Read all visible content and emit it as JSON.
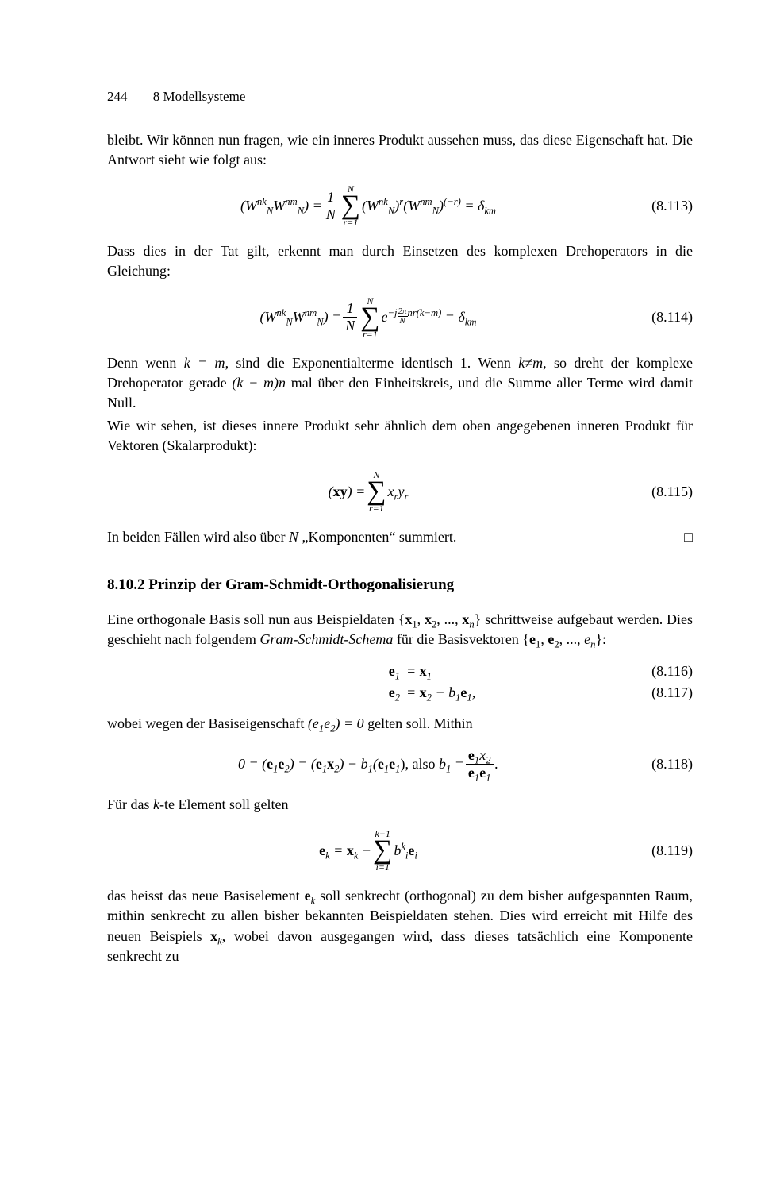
{
  "header": {
    "page_number": "244",
    "chapter": "8  Modellsysteme"
  },
  "p1": "bleibt. Wir können nun fragen, wie ein inneres Produkt aussehen muss, das diese Eigenschaft hat. Die Antwort sieht wie folgt aus:",
  "eq113": {
    "lhs_open": "(",
    "W1": "W",
    "W1sup": "nk",
    "W1sub": "N",
    "W2": "W",
    "W2sup": "nm",
    "W2sub": "N",
    "lhs_close": ") = ",
    "frac_num": "1",
    "frac_den": "N",
    "sum_top": "N",
    "sum_bot": "r=1",
    "mid_open": "(",
    "W3": "W",
    "W3sup": "nk",
    "W3sub": "N",
    "mid_close": ")",
    "pow1": "r",
    "mid2_open": "(",
    "W4": "W",
    "W4sup": "nm",
    "W4sub": "N",
    "mid2_close": ")",
    "pow2": "(−r)",
    "tail": " = δ",
    "tailsub": "km",
    "num": "(8.113)"
  },
  "p2": "Dass dies in der Tat gilt, erkennt man durch Einsetzen des komplexen Drehoperators in die Gleichung:",
  "eq114": {
    "lhs_open": "(",
    "W1": "W",
    "W1sup": "nk",
    "W1sub": "N",
    "W2": "W",
    "W2sup": "nm",
    "W2sub": "N",
    "lhs_close": ") = ",
    "frac_num": "1",
    "frac_den": "N",
    "sum_top": "N",
    "sum_bot": "r=1",
    "e": " e",
    "exp_pre": "−j",
    "exp_num": "2π",
    "exp_den": "N",
    "exp_post": "nr(k−m)",
    "tail": " = δ",
    "tailsub": "km",
    "num": "(8.114)"
  },
  "p3a": "Denn wenn ",
  "p3b": "k = m",
  "p3c": ", sind die Exponentialterme identisch 1. Wenn ",
  "p3d": "k≠m",
  "p3e": ", so dreht der komplexe Drehoperator gerade ",
  "p3f": "(k − m)n",
  "p3g": " mal über den Einheitskreis, und die Summe aller Terme wird damit Null.",
  "p4": "Wie wir sehen, ist dieses innere Produkt sehr ähnlich dem oben angegebenen inneren Produkt für Vektoren (Skalarprodukt):",
  "eq115": {
    "lhs": "(xy) = ",
    "sum_top": "N",
    "sum_bot": "r=1",
    "term_x": " x",
    "term_xsub": "r",
    "term_y": "y",
    "term_ysub": "r",
    "num": "(8.115)"
  },
  "p5a": "In beiden Fällen wird also über ",
  "p5b": "N",
  "p5c": " „Komponenten“  summiert.",
  "tomb": "□",
  "sec": "8.10.2 Prinzip der Gram-Schmidt-Orthogonalisierung",
  "p6a": "Eine orthogonale Basis soll nun aus Beispieldaten ",
  "p6set": "{x₁, x₂, ..., xₙ}",
  "p6b": " schrittweise aufgebaut werden. Dies geschieht nach folgendem ",
  "p6i": "Gram-Schmidt-Schema",
  "p6c": " für die Basisvektoren ",
  "p6set2": "{e₁, e₂, ..., eₙ}",
  "p6d": ":",
  "eq116": {
    "lhs_e": "e",
    "lhs_sub": "1",
    "eq": " = ",
    "rhs_x": "x",
    "rhs_sub": "1",
    "num": "(8.116)"
  },
  "eq117": {
    "lhs_e": "e",
    "lhs_sub": "2",
    "eq": " = ",
    "rhs_x": "x",
    "rhs_xsub": "2",
    "minus": " − ",
    "b": "b",
    "bsub": "1",
    "e": "e",
    "esub": "1",
    "tail": ",",
    "num": "(8.117)"
  },
  "p7a": "wobei wegen der Basiseigenschaft ",
  "p7eq": "(e₁e₂) = 0",
  "p7b": " gelten soll. Mithin",
  "eq118": {
    "lhs": "0 = (",
    "e1a": "e",
    "e1asub": "1",
    "e1b": "e",
    "e1bsub": "2",
    "mid1": ") = (",
    "e2a": "e",
    "e2asub": "1",
    "x2": "x",
    "x2sub": "2",
    "mid2": ") − ",
    "b": "b",
    "bsub": "1",
    "mid3": "(",
    "e3a": "e",
    "e3asub": "1",
    "e3b": "e",
    "e3bsub": "1",
    "mid4": "),    also    ",
    "b2": "b",
    "b2sub": "1",
    "eq": " = ",
    "fnum_e": "e",
    "fnum_esub": "1",
    "fnum_x": "x",
    "fnum_xsub": "2",
    "fden_e1": "e",
    "fden_e1sub": "1",
    "fden_e2": "e",
    "fden_e2sub": "1",
    "tail": ".",
    "num": "(8.118)"
  },
  "p8a": "Für das ",
  "p8b": "k",
  "p8c": "-te Element soll gelten",
  "eq119": {
    "lhs_e": "e",
    "lhs_sub": "k",
    "eq": " = ",
    "x": "x",
    "xsub": "k",
    "minus": " − ",
    "sum_top": "k−1",
    "sum_bot": "i=1",
    "b": " b",
    "bsup": "k",
    "bsub": "i",
    "e": "e",
    "esub": "i",
    "num": "(8.119)"
  },
  "p9a": "das heisst das neue Basiselement ",
  "p9e": "e",
  "p9esub": "k",
  "p9b": " soll senkrecht (orthogonal) zu dem bisher aufgespannten Raum, mithin senkrecht zu allen bisher bekannten Beispieldaten stehen. Dies wird erreicht mit Hilfe des neuen Beispiels ",
  "p9x": "x",
  "p9xsub": "k",
  "p9c": ", wobei davon ausgegangen wird, dass dieses tatsächlich eine Komponente senkrecht zu"
}
